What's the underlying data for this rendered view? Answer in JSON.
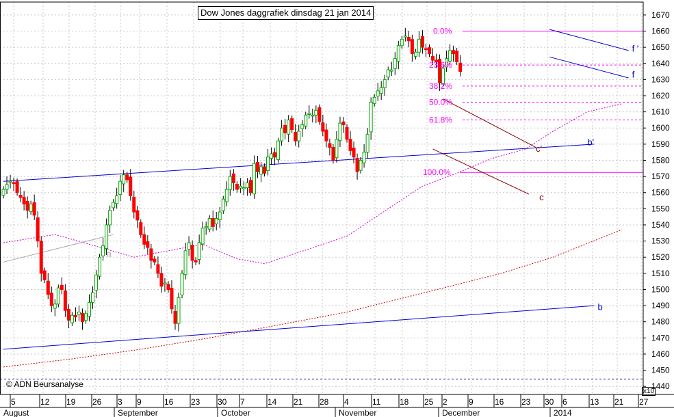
{
  "chart_data": {
    "type": "candlestick",
    "title": "Dow Jones daggrafiek dinsdag 21 jan 2014",
    "copyright": "© ADN Beursanalyse",
    "y_axis": {
      "position": "right",
      "ticks": [
        1440,
        1450,
        1460,
        1470,
        1480,
        1490,
        1500,
        1510,
        1520,
        1530,
        1540,
        1550,
        1560,
        1570,
        1580,
        1590,
        1600,
        1610,
        1620,
        1630,
        1640,
        1650,
        1660,
        1670
      ],
      "range": [
        1435,
        1678
      ],
      "multiplier": "x10"
    },
    "x_axis": {
      "day_ticks": [
        "5",
        "12",
        "19",
        "26",
        "3",
        "9",
        "16",
        "23",
        "30",
        "7",
        "14",
        "21",
        "28",
        "4",
        "11",
        "18",
        "25",
        "2",
        "9",
        "16",
        "23",
        "30",
        "6",
        "13",
        "21",
        "27"
      ],
      "months": [
        "August",
        "September",
        "October",
        "November",
        "December",
        "2014"
      ]
    },
    "grid": true,
    "fibonacci": [
      {
        "label": "0.0%",
        "value": 1660
      },
      {
        "label": "23.6%",
        "value": 1639
      },
      {
        "label": "38.2%",
        "value": 1626
      },
      {
        "label": "50.0%",
        "value": 1616
      },
      {
        "label": "61.8%",
        "value": 1605
      },
      {
        "label": "100.0%",
        "value": 1572.5
      }
    ],
    "horizontal_lines": [
      {
        "value": 1444.5,
        "style": "dashed",
        "color": "#000080"
      }
    ],
    "trendlines": [
      {
        "label": "",
        "color": "#aaaaaa",
        "from": {
          "i": 0,
          "v": 1517
        },
        "to": {
          "i": 32,
          "v": 1534
        }
      },
      {
        "label": "b'",
        "color": "#0000cc",
        "from": {
          "i": 0,
          "v": 1567
        },
        "to": {
          "i": 172,
          "v": 1590
        }
      },
      {
        "label": "b",
        "color": "#0000cc",
        "from": {
          "i": 0,
          "v": 1463
        },
        "to": {
          "i": 172,
          "v": 1490
        }
      },
      {
        "label": "c",
        "color": "#800000",
        "from": {
          "i": 125,
          "v": 1587
        },
        "to": {
          "i": 153,
          "v": 1559
        }
      },
      {
        "label": "c'",
        "color": "#800000",
        "from": {
          "i": 128,
          "v": 1618
        },
        "to": {
          "i": 155,
          "v": 1588
        }
      },
      {
        "label": "f",
        "color": "#0000cc",
        "from": {
          "i": 159,
          "v": 1644
        },
        "to": {
          "i": 182,
          "v": 1631
        }
      },
      {
        "label": "f '",
        "color": "#0000cc",
        "from": {
          "i": 159,
          "v": 1661
        },
        "to": {
          "i": 182,
          "v": 1648
        }
      }
    ],
    "annotations": [
      {
        "text": "a",
        "color": "#aaaaaa",
        "i": 30,
        "v": 1522
      },
      {
        "text": "b'",
        "color": "#0000cc",
        "i": 170,
        "v": 1591
      },
      {
        "text": "b",
        "color": "#0000cc",
        "i": 173,
        "v": 1489
      },
      {
        "text": "c",
        "color": "#800000",
        "i": 156,
        "v": 1557
      },
      {
        "text": "c'",
        "color": "#800000",
        "i": 155,
        "v": 1587
      },
      {
        "text": "f",
        "color": "#0000cc",
        "i": 183,
        "v": 1633
      },
      {
        "text": "f '",
        "color": "#0000cc",
        "i": 183,
        "v": 1649
      }
    ],
    "moving_averages": [
      {
        "color": "#cc00cc",
        "style": "dashed",
        "points": [
          [
            0,
            1529
          ],
          [
            15,
            1534
          ],
          [
            25,
            1528
          ],
          [
            38,
            1520
          ],
          [
            48,
            1524
          ],
          [
            58,
            1528
          ],
          [
            68,
            1519
          ],
          [
            76,
            1516
          ],
          [
            86,
            1523
          ],
          [
            100,
            1533
          ],
          [
            112,
            1550
          ],
          [
            122,
            1564
          ],
          [
            132,
            1572
          ],
          [
            142,
            1581
          ],
          [
            152,
            1587
          ],
          [
            160,
            1598
          ],
          [
            170,
            1610
          ],
          [
            180,
            1615
          ]
        ]
      },
      {
        "color": "#cc0000",
        "style": "dashed",
        "points": [
          [
            0,
            1452
          ],
          [
            20,
            1457
          ],
          [
            40,
            1463
          ],
          [
            60,
            1470
          ],
          [
            80,
            1478
          ],
          [
            100,
            1486
          ],
          [
            115,
            1494
          ],
          [
            130,
            1502
          ],
          [
            145,
            1510
          ],
          [
            160,
            1520
          ],
          [
            180,
            1537
          ]
        ]
      }
    ],
    "candles": {
      "up": "#00aa00",
      "down": "#ff0000",
      "closes": [
        1562,
        1565,
        1567,
        1566,
        1560,
        1557,
        1553,
        1549,
        1553,
        1546,
        1530,
        1510,
        1506,
        1497,
        1490,
        1491,
        1501,
        1500,
        1487,
        1481,
        1484,
        1483,
        1486,
        1480,
        1485,
        1492,
        1498,
        1509,
        1520,
        1527,
        1540,
        1549,
        1554,
        1558,
        1567,
        1571,
        1568,
        1558,
        1548,
        1543,
        1534,
        1528,
        1526,
        1518,
        1517,
        1510,
        1502,
        1504,
        1500,
        1488,
        1479,
        1495,
        1510,
        1524,
        1529,
        1518,
        1517,
        1529,
        1538,
        1539,
        1544,
        1539,
        1544,
        1548,
        1556,
        1562,
        1570,
        1566,
        1562,
        1564,
        1563,
        1566,
        1560,
        1578,
        1573,
        1576,
        1572,
        1582,
        1584,
        1582,
        1592,
        1600,
        1597,
        1605,
        1599,
        1592,
        1598,
        1602,
        1608,
        1609,
        1608,
        1611,
        1604,
        1598,
        1592,
        1588,
        1580,
        1593,
        1603,
        1602,
        1593,
        1586,
        1582,
        1573,
        1580,
        1585,
        1596,
        1616,
        1619,
        1623,
        1625,
        1630,
        1636,
        1636,
        1643,
        1651,
        1655,
        1657,
        1654,
        1646,
        1647,
        1655,
        1650,
        1649,
        1646,
        1642,
        1641,
        1628,
        1637,
        1643,
        1648,
        1646,
        1641,
        1635
      ]
    }
  }
}
